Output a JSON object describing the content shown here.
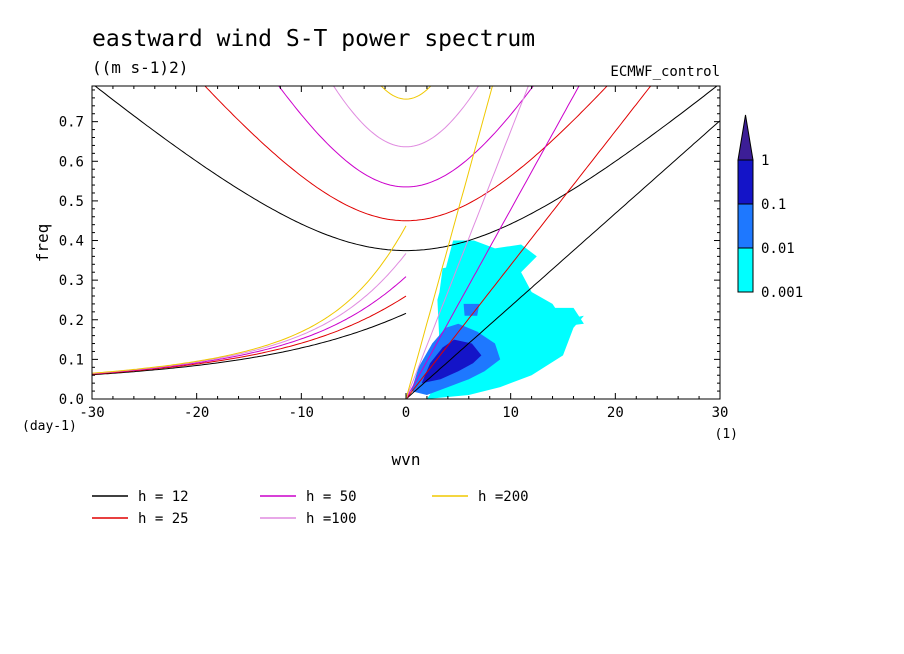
{
  "chart_data": {
    "type": "spectrum",
    "title": "eastward wind S-T power spectrum",
    "units": "((m s-1)2)",
    "source_label": "ECMWF_control",
    "xlabel": "wvn",
    "ylabel": "freq",
    "x_unit_label": "(1)",
    "y_unit_label": "(day-1)",
    "xlim": [
      -30,
      30
    ],
    "ylim": [
      0,
      0.79
    ],
    "x_ticks": [
      -30,
      -20,
      -10,
      0,
      10,
      20,
      30
    ],
    "x_tick_labels": [
      "-30",
      "-20",
      "-10",
      "0",
      "10",
      "20",
      "30"
    ],
    "y_ticks": [
      0,
      0.1,
      0.2,
      0.3,
      0.4,
      0.5,
      0.6,
      0.7
    ],
    "y_tick_labels": [
      "0.0",
      "0.1",
      "0.2",
      "0.3",
      "0.4",
      "0.5",
      "0.6",
      "0.7"
    ],
    "colorbar": {
      "levels": [
        "0.001",
        "0.01",
        "0.1",
        "1"
      ],
      "colors": [
        "#00ffff",
        "#1e78ff",
        "#1414c8",
        "#3c1e96"
      ]
    },
    "curves": [
      {
        "name": "h = 12",
        "h": 12,
        "color": "#000000"
      },
      {
        "name": "h = 25",
        "h": 25,
        "color": "#e00000"
      },
      {
        "name": "h = 50",
        "h": 50,
        "color": "#cc00cc"
      },
      {
        "name": "h =100",
        "h": 100,
        "color": "#e08ce0"
      },
      {
        "name": "h =200",
        "h": 200,
        "color": "#f0c800"
      }
    ],
    "spectrum_patches": [
      {
        "level": 0,
        "polygon": [
          [
            2.5,
            0.02
          ],
          [
            3.2,
            0.14
          ],
          [
            3.0,
            0.25
          ],
          [
            3.8,
            0.33
          ],
          [
            4.5,
            0.4
          ],
          [
            6.5,
            0.4
          ],
          [
            8.5,
            0.38
          ],
          [
            11,
            0.39
          ],
          [
            12.5,
            0.36
          ],
          [
            11,
            0.32
          ],
          [
            12,
            0.27
          ],
          [
            14,
            0.24
          ],
          [
            15,
            0.2
          ],
          [
            17,
            0.21
          ],
          [
            16,
            0.18
          ],
          [
            15,
            0.11
          ],
          [
            12,
            0.06
          ],
          [
            9,
            0.03
          ],
          [
            6,
            0.01
          ],
          [
            2,
            0.0
          ]
        ]
      },
      {
        "level": 0,
        "polygon": [
          [
            3.5,
            0.33
          ],
          [
            5.5,
            0.34
          ],
          [
            4.8,
            0.28
          ],
          [
            3.2,
            0.27
          ]
        ]
      },
      {
        "level": 0,
        "polygon": [
          [
            13,
            0.23
          ],
          [
            16,
            0.23
          ],
          [
            17,
            0.19
          ],
          [
            14,
            0.18
          ]
        ]
      },
      {
        "level": 1,
        "polygon": [
          [
            0.5,
            0.02
          ],
          [
            1.2,
            0.08
          ],
          [
            2.5,
            0.14
          ],
          [
            3.8,
            0.18
          ],
          [
            5.0,
            0.19
          ],
          [
            6.8,
            0.17
          ],
          [
            8.5,
            0.14
          ],
          [
            9.0,
            0.1
          ],
          [
            7.5,
            0.07
          ],
          [
            6.0,
            0.05
          ],
          [
            4.0,
            0.03
          ],
          [
            2.0,
            0.01
          ]
        ]
      },
      {
        "level": 1,
        "polygon": [
          [
            5.5,
            0.24
          ],
          [
            7.0,
            0.24
          ],
          [
            6.8,
            0.21
          ],
          [
            5.6,
            0.21
          ]
        ]
      },
      {
        "level": 2,
        "polygon": [
          [
            1.5,
            0.04
          ],
          [
            2.3,
            0.09
          ],
          [
            3.5,
            0.13
          ],
          [
            4.6,
            0.15
          ],
          [
            6.3,
            0.14
          ],
          [
            7.2,
            0.11
          ],
          [
            6.4,
            0.09
          ],
          [
            5.0,
            0.07
          ],
          [
            3.3,
            0.05
          ]
        ]
      }
    ],
    "grid": false,
    "legend_position": "below plot"
  }
}
